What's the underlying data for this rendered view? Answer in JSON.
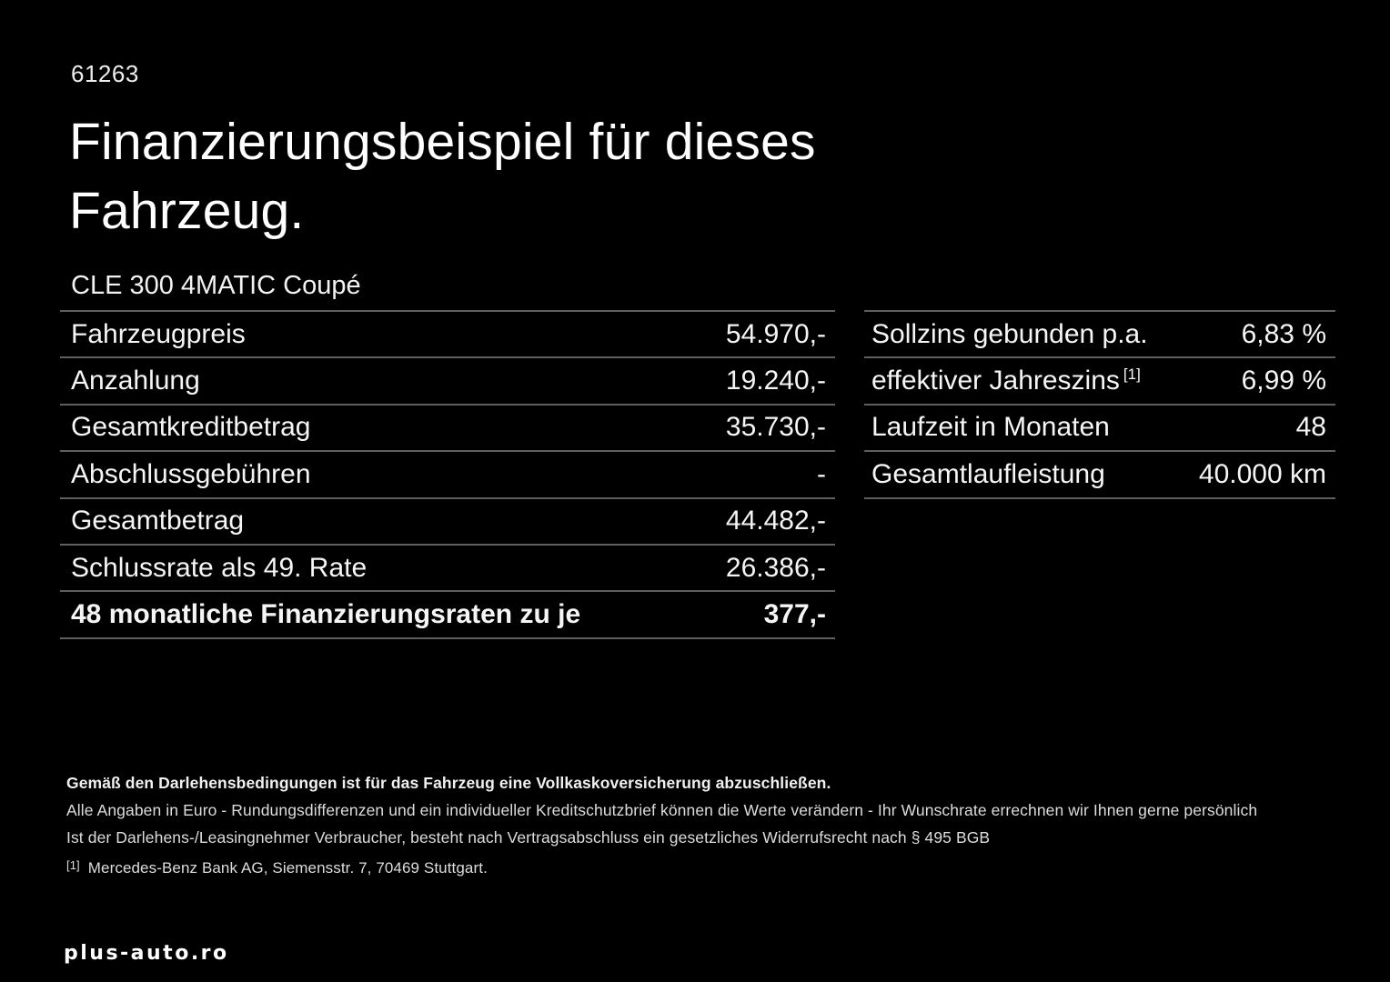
{
  "page": {
    "ref_number": "61263",
    "title_lines": [
      "Finanzierungsbeispiel für dieses",
      "Fahrzeug."
    ],
    "vehicle_model": "CLE 300 4MATIC Coupé"
  },
  "tables": {
    "left": {
      "rows": [
        {
          "label": "Fahrzeugpreis",
          "value": "54.970,-"
        },
        {
          "label": "Anzahlung",
          "value": "19.240,-"
        },
        {
          "label": "Gesamtkreditbetrag",
          "value": "35.730,-"
        },
        {
          "label": "Abschlussgebühren",
          "value": "-"
        },
        {
          "label": "Gesamtbetrag",
          "value": "44.482,-"
        },
        {
          "label": "Schlussrate als 49. Rate",
          "value": "26.386,-"
        },
        {
          "label": "48 monatliche Finanzierungsraten zu je",
          "value": "377,-"
        }
      ]
    },
    "right": {
      "rows": [
        {
          "label": "Sollzins gebunden p.a.",
          "value": "6,83 %"
        },
        {
          "label": "effektiver Jahreszins",
          "sup": "[1]",
          "value": "6,99 %"
        },
        {
          "label": "Laufzeit in Monaten",
          "value": "48"
        },
        {
          "label": "Gesamtlaufleistung",
          "value": "40.000 km"
        }
      ]
    }
  },
  "footnotes": {
    "insurance_note": "Gemäß den Darlehensbedingungen ist für das Fahrzeug eine Vollkaskoversicherung abzuschließen.",
    "euro_note": "Alle Angaben in Euro - Rundungsdifferenzen und ein individueller Kreditschutzbrief können die Werte verändern - Ihr Wunschrate errechnen wir Ihnen gerne persönlich",
    "withdrawal_note": "Ist der Darlehens-/Leasingnehmer Verbraucher, besteht nach Vertragsabschluss ein gesetzliches Widerrufsrecht nach § 495 BGB",
    "bank_marker": "[1]",
    "bank_note": "Mercedes-Benz Bank AG, Siemensstr. 7, 70469 Stuttgart."
  },
  "watermark": {
    "text": "plus-auto.ro"
  },
  "colors": {
    "background": "#000000",
    "text": "#f5f5f5",
    "divider": "#5f5f5f"
  }
}
